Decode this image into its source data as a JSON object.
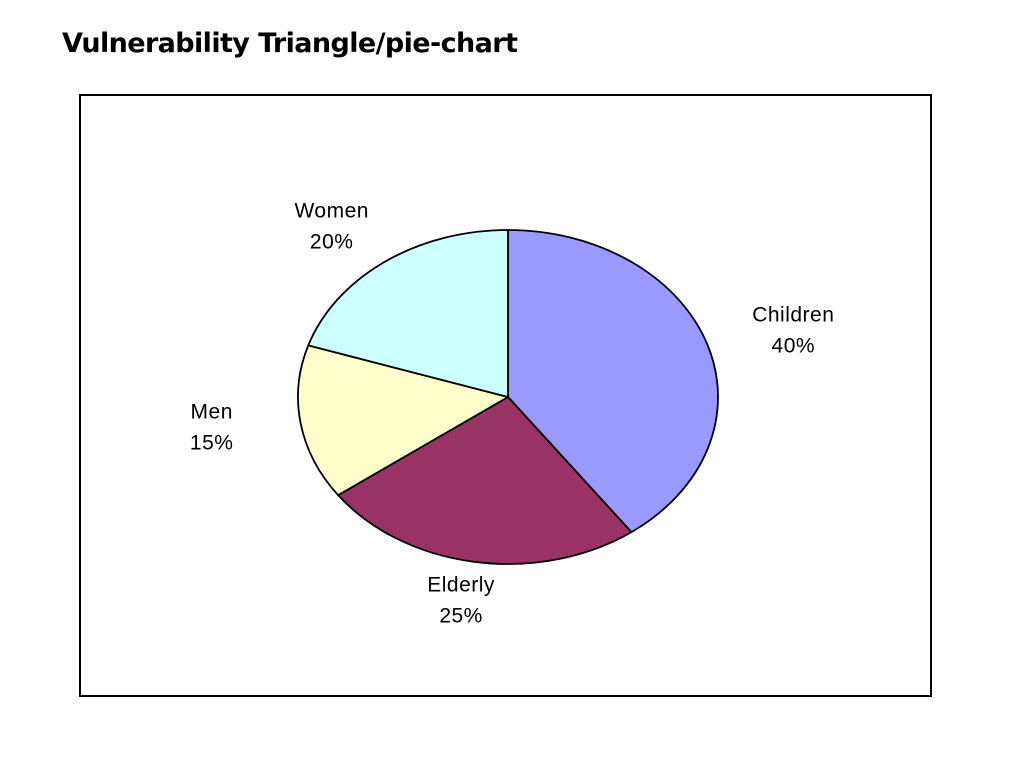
{
  "title": "Vulnerability Triangle/pie-chart",
  "chart_data": {
    "type": "pie",
    "title": "",
    "slices": [
      {
        "name": "Children",
        "value": 40,
        "label": "40%",
        "color": "#9999FF"
      },
      {
        "name": "Elderly",
        "value": 25,
        "label": "25%",
        "color": "#993366"
      },
      {
        "name": "Men",
        "value": 15,
        "label": "15%",
        "color": "#FFFFCC"
      },
      {
        "name": "Women",
        "value": 20,
        "label": "20%",
        "color": "#CCFFFF"
      }
    ]
  }
}
